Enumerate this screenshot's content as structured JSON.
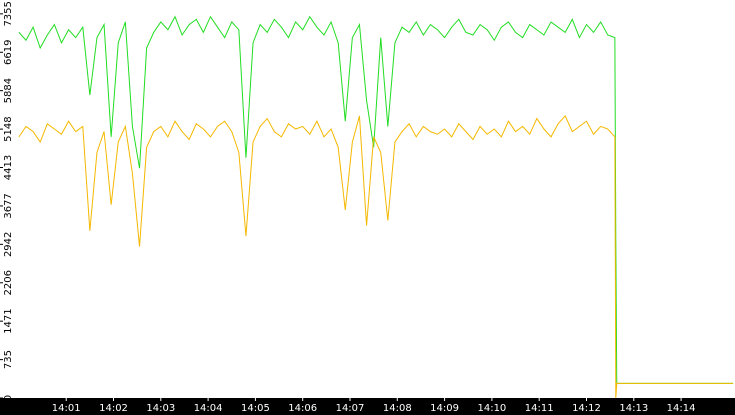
{
  "chart_data": {
    "type": "line",
    "x": [
      0,
      0.15,
      0.3,
      0.45,
      0.6,
      0.75,
      0.9,
      1.05,
      1.2,
      1.35,
      1.5,
      1.65,
      1.8,
      1.95,
      2.1,
      2.25,
      2.4,
      2.55,
      2.7,
      2.85,
      3,
      3.15,
      3.3,
      3.45,
      3.6,
      3.75,
      3.9,
      4.05,
      4.2,
      4.35,
      4.5,
      4.65,
      4.8,
      4.95,
      5.1,
      5.25,
      5.4,
      5.55,
      5.7,
      5.85,
      6,
      6.15,
      6.3,
      6.45,
      6.6,
      6.75,
      6.9,
      7.05,
      7.2,
      7.35,
      7.5,
      7.65,
      7.8,
      7.95,
      8.1,
      8.25,
      8.4,
      8.55,
      8.7,
      8.85,
      9,
      9.15,
      9.3,
      9.45,
      9.6,
      9.75,
      9.9,
      10.05,
      10.2,
      10.35,
      10.5,
      10.65,
      10.8,
      10.95,
      11.1,
      11.25,
      11.4,
      11.55,
      11.7,
      11.85,
      12,
      12.15,
      12.3,
      12.45,
      12.6,
      12.62,
      12.64,
      15.1
    ],
    "series": [
      {
        "color": "#22dd22",
        "values": [
          7000,
          6850,
          7100,
          6700,
          6950,
          7150,
          6800,
          7050,
          6900,
          7100,
          5800,
          6900,
          7150,
          5000,
          6800,
          7200,
          5200,
          4400,
          6700,
          7000,
          7200,
          7050,
          7300,
          6950,
          7150,
          7250,
          7000,
          7300,
          7100,
          6900,
          7200,
          7050,
          4600,
          6800,
          7150,
          7000,
          7250,
          7100,
          6900,
          7200,
          7050,
          7300,
          7100,
          6950,
          7200,
          6800,
          5300,
          6900,
          7150,
          5700,
          4800,
          6900,
          5200,
          6800,
          7100,
          7000,
          7200,
          6950,
          7150,
          7050,
          6900,
          7100,
          7250,
          7000,
          6950,
          7150,
          7050,
          6850,
          7100,
          7200,
          7000,
          6900,
          7150,
          7050,
          6950,
          7200,
          7100,
          7000,
          7250,
          6900,
          7150,
          7000,
          7200,
          6950,
          6900,
          3000,
          280,
          280
        ]
      },
      {
        "color": "#f5b800",
        "values": [
          5000,
          5200,
          5100,
          4900,
          5250,
          5150,
          5050,
          5300,
          5100,
          5200,
          3200,
          4700,
          5100,
          3700,
          4900,
          5200,
          4300,
          2900,
          4800,
          5100,
          5200,
          5000,
          5300,
          5100,
          4950,
          5250,
          5150,
          5000,
          5200,
          5300,
          5100,
          4700,
          3100,
          4900,
          5200,
          5350,
          5100,
          5000,
          5250,
          5150,
          5200,
          5050,
          5300,
          5000,
          5150,
          4800,
          3600,
          4900,
          5400,
          3300,
          5000,
          4700,
          3400,
          4900,
          5100,
          5250,
          5000,
          5200,
          5100,
          5050,
          5150,
          5000,
          5250,
          5100,
          4950,
          5200,
          5050,
          5150,
          5000,
          5300,
          5100,
          5200,
          5050,
          5350,
          5150,
          5000,
          5250,
          5400,
          5100,
          5200,
          5300,
          5050,
          5200,
          5150,
          5000,
          0,
          280,
          280
        ]
      }
    ],
    "xlim": [
      -0.4,
      15.14
    ],
    "xticks": [
      {
        "value": 1,
        "label": "14:01"
      },
      {
        "value": 2,
        "label": "14:02"
      },
      {
        "value": 3,
        "label": "14:03"
      },
      {
        "value": 4,
        "label": "14:04"
      },
      {
        "value": 5,
        "label": "14:05"
      },
      {
        "value": 6,
        "label": "14:06"
      },
      {
        "value": 7,
        "label": "14:07"
      },
      {
        "value": 8,
        "label": "14:08"
      },
      {
        "value": 9,
        "label": "14:09"
      },
      {
        "value": 10,
        "label": "14:10"
      },
      {
        "value": 11,
        "label": "14:11"
      },
      {
        "value": 12,
        "label": "14:12"
      },
      {
        "value": 13,
        "label": "14:13"
      },
      {
        "value": 14,
        "label": "14:14"
      }
    ],
    "ylim": [
      0,
      7620
    ],
    "yticks": [
      0,
      735,
      1471,
      2206,
      2942,
      3677,
      4413,
      5148,
      5884,
      6619,
      7355
    ]
  }
}
